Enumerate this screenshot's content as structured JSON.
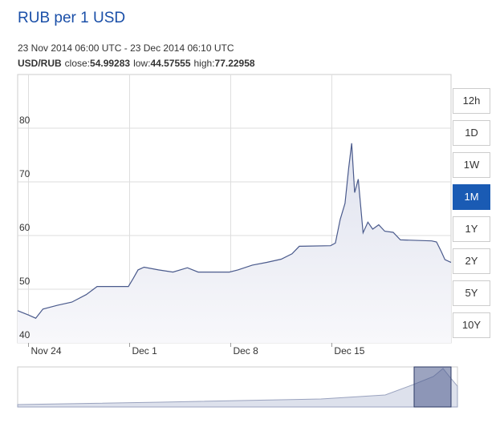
{
  "chart_data": {
    "type": "line",
    "title": "RUB per 1 USD",
    "subtitle": "23 Nov 2014 06:00 UTC - 23 Dec 2014 06:10 UTC",
    "pair": "USD/RUB",
    "stats": [
      {
        "name": "close:",
        "value": 54.99283
      },
      {
        "name": "low:",
        "value": 44.57555
      },
      {
        "name": "high:",
        "value": 77.22958
      }
    ],
    "x": [
      "2014-11-23T06:00",
      "2014-11-24T00:00",
      "2014-11-24T12:00",
      "2014-11-25T00:00",
      "2014-11-26T00:00",
      "2014-11-27T00:00",
      "2014-11-28T00:00",
      "2014-11-28T18:00",
      "2014-11-30T22:00",
      "2014-12-01T06:00",
      "2014-12-01T14:00",
      "2014-12-02T00:00",
      "2014-12-03T00:00",
      "2014-12-04T00:00",
      "2014-12-05T00:00",
      "2014-12-05T18:00",
      "2014-12-07T22:00",
      "2014-12-08T12:00",
      "2014-12-09T12:00",
      "2014-12-10T12:00",
      "2014-12-11T12:00",
      "2014-12-12T06:00",
      "2014-12-12T18:00",
      "2014-12-14T22:00",
      "2014-12-15T06:00",
      "2014-12-15T14:00",
      "2014-12-15T22:00",
      "2014-12-16T04:00",
      "2014-12-16T09:00",
      "2014-12-16T14:00",
      "2014-12-16T20:00",
      "2014-12-17T04:00",
      "2014-12-17T12:00",
      "2014-12-17T20:00",
      "2014-12-18T06:00",
      "2014-12-18T16:00",
      "2014-12-19T06:00",
      "2014-12-19T18:00",
      "2014-12-21T22:00",
      "2014-12-22T06:00",
      "2014-12-22T14:00",
      "2014-12-22T20:00",
      "2014-12-23T06:10"
    ],
    "series": [
      {
        "name": "USD/RUB",
        "color": "#4a5a8c",
        "values": [
          46,
          45.2,
          44.6,
          46.3,
          47,
          47.6,
          49,
          50.5,
          50.5,
          52,
          53.6,
          54.1,
          53.6,
          53.2,
          54,
          53.2,
          53.2,
          53.6,
          54.5,
          55,
          55.6,
          56.6,
          58,
          58.1,
          58.6,
          63,
          66,
          72.5,
          77.2,
          68,
          70.5,
          60.5,
          62.5,
          61.2,
          62,
          60.8,
          60.6,
          59.2,
          59,
          58.8,
          57,
          55.5,
          54.99
        ]
      }
    ],
    "xlim": [
      "2014-11-23T06:00",
      "2014-12-23T06:10"
    ],
    "xticks": [
      {
        "value": "2014-11-24T00:00",
        "label": "Nov 24"
      },
      {
        "value": "2014-12-01T00:00",
        "label": "Dec 1"
      },
      {
        "value": "2014-12-08T00:00",
        "label": "Dec 8"
      },
      {
        "value": "2014-12-15T00:00",
        "label": "Dec 15"
      }
    ],
    "ylim": [
      40,
      90
    ],
    "yticks": [
      40,
      50,
      60,
      70,
      80
    ],
    "grid": true,
    "ranges": [
      "12h",
      "1D",
      "1W",
      "1M",
      "1Y",
      "2Y",
      "5Y",
      "10Y"
    ],
    "selected_range": "1M"
  }
}
